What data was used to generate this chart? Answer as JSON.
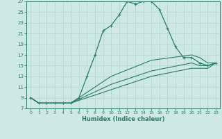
{
  "xlabel": "Humidex (Indice chaleur)",
  "background_color": "#cde8e5",
  "grid_color": "#b8d8d5",
  "line_color": "#2a7a6a",
  "xlim": [
    -0.5,
    23.5
  ],
  "ylim": [
    7,
    27
  ],
  "yticks": [
    7,
    9,
    11,
    13,
    15,
    17,
    19,
    21,
    23,
    25,
    27
  ],
  "xticks": [
    0,
    1,
    2,
    3,
    4,
    5,
    6,
    7,
    8,
    9,
    10,
    11,
    12,
    13,
    14,
    15,
    16,
    17,
    18,
    19,
    20,
    21,
    22,
    23
  ],
  "curve1_x": [
    0,
    1,
    2,
    3,
    4,
    5,
    6,
    7,
    8,
    9,
    10,
    11,
    12,
    13,
    14,
    15,
    16,
    17,
    18,
    19,
    20,
    21,
    22,
    23
  ],
  "curve1_y": [
    9.0,
    8.0,
    8.0,
    8.0,
    8.0,
    8.0,
    9.0,
    13.0,
    17.0,
    21.5,
    22.5,
    24.5,
    27.0,
    26.5,
    27.0,
    27.0,
    25.5,
    22.0,
    18.5,
    16.5,
    16.5,
    15.5,
    15.0,
    15.5
  ],
  "curve2_x": [
    0,
    1,
    2,
    3,
    4,
    5,
    10,
    15,
    20,
    21,
    22,
    23
  ],
  "curve2_y": [
    9.0,
    8.0,
    8.0,
    8.0,
    8.0,
    8.0,
    13.0,
    16.0,
    17.0,
    16.5,
    15.5,
    15.5
  ],
  "curve3_x": [
    0,
    1,
    2,
    3,
    4,
    5,
    10,
    15,
    20,
    21,
    22,
    23
  ],
  "curve3_y": [
    9.0,
    8.0,
    8.0,
    8.0,
    8.0,
    8.0,
    11.5,
    14.0,
    15.5,
    15.0,
    15.0,
    15.5
  ],
  "curve4_x": [
    0,
    1,
    2,
    3,
    4,
    5,
    10,
    15,
    20,
    21,
    22,
    23
  ],
  "curve4_y": [
    9.0,
    8.0,
    8.0,
    8.0,
    8.0,
    8.0,
    10.5,
    13.0,
    14.5,
    14.5,
    14.5,
    15.5
  ]
}
